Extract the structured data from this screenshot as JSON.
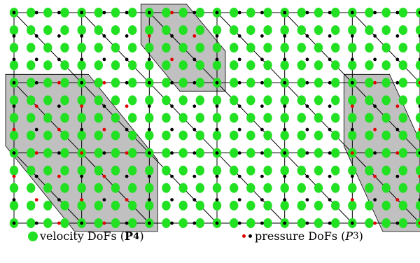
{
  "mesh": {
    "cells_x": 6,
    "cells_y": 3,
    "velocity_order": 4,
    "pressure_order": 3,
    "highlighted_patches": [
      {
        "cells": [
          [
            0,
            1
          ],
          [
            1,
            1
          ],
          [
            0,
            2
          ],
          [
            1,
            2
          ]
        ]
      },
      {
        "cells": [
          [
            2,
            0
          ]
        ]
      },
      {
        "cells": [
          [
            5,
            1
          ],
          [
            5,
            2
          ]
        ]
      }
    ],
    "colors": {
      "velocity_dof": "#22e022",
      "pressure_dof": "#000000",
      "pressure_dof_highlight": "#e00000",
      "patch_fill": "#c0c0c0",
      "mesh_line": "#000000"
    }
  },
  "legend": {
    "velocity_label": "velocity DoFs (",
    "velocity_space": "P",
    "velocity_sub": "4",
    "velocity_close": ")",
    "pressure_label": "pressure DoFs (",
    "pressure_space": "P",
    "pressure_sub": "3",
    "pressure_close": ")"
  }
}
